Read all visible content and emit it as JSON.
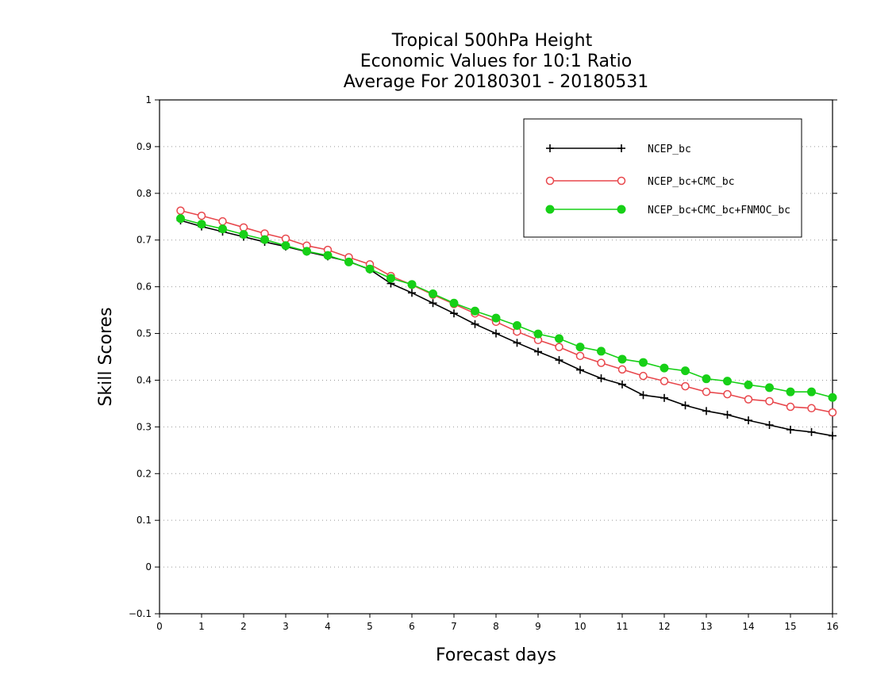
{
  "chart_data": {
    "type": "line",
    "title_lines": [
      "Tropical 500hPa Height",
      "Economic Values for 10:1 Ratio",
      "Average For 20180301 - 20180531"
    ],
    "xlabel": "Forecast days",
    "ylabel": "Skill Scores",
    "xlim": [
      0,
      16
    ],
    "ylim": [
      -0.1,
      1
    ],
    "x_ticks": [
      0,
      1,
      2,
      3,
      4,
      5,
      6,
      7,
      8,
      9,
      10,
      11,
      12,
      13,
      14,
      15,
      16
    ],
    "x_tick_labels": [
      "0",
      "1",
      "2",
      "3",
      "4",
      "5",
      "6",
      "7",
      "8",
      "9",
      "10",
      "11",
      "12",
      "13",
      "14",
      "15",
      "16"
    ],
    "y_ticks": [
      -0.1,
      0,
      0.1,
      0.2,
      0.3,
      0.4,
      0.5,
      0.6,
      0.7,
      0.8,
      0.9,
      1
    ],
    "y_tick_labels": [
      "−0.1",
      "0",
      "0.1",
      "0.2",
      "0.3",
      "0.4",
      "0.5",
      "0.6",
      "0.7",
      "0.8",
      "0.9",
      "1"
    ],
    "grid": "horizontal dotted",
    "legend_position": "top-right",
    "x": [
      0.5,
      1,
      1.5,
      2,
      2.5,
      3,
      3.5,
      4,
      4.5,
      5,
      5.5,
      6,
      6.5,
      7,
      7.5,
      8,
      8.5,
      9,
      9.5,
      10,
      10.5,
      11,
      11.5,
      12,
      12.5,
      13,
      13.5,
      14,
      14.5,
      15,
      15.5,
      16
    ],
    "series": [
      {
        "name": "NCEP_bc",
        "color": "#000000",
        "marker": "plus",
        "values": [
          0.742,
          0.729,
          0.718,
          0.707,
          0.696,
          0.686,
          0.675,
          0.665,
          0.654,
          0.637,
          0.607,
          0.587,
          0.565,
          0.543,
          0.52,
          0.5,
          0.48,
          0.461,
          0.443,
          0.422,
          0.404,
          0.391,
          0.368,
          0.362,
          0.346,
          0.334,
          0.326,
          0.314,
          0.304,
          0.294,
          0.289,
          0.281
        ]
      },
      {
        "name": "NCEP_bc+CMC_bc",
        "color": "#e8474c",
        "marker": "open-circle",
        "values": [
          0.763,
          0.752,
          0.74,
          0.727,
          0.714,
          0.703,
          0.688,
          0.679,
          0.663,
          0.648,
          0.623,
          0.604,
          0.583,
          0.563,
          0.543,
          0.525,
          0.504,
          0.486,
          0.471,
          0.452,
          0.437,
          0.423,
          0.409,
          0.398,
          0.387,
          0.375,
          0.37,
          0.359,
          0.355,
          0.343,
          0.34,
          0.331
        ]
      },
      {
        "name": "NCEP_bc+CMC_bc+FNMOC_bc",
        "color": "#17d017",
        "marker": "filled-circle",
        "values": [
          0.746,
          0.734,
          0.724,
          0.712,
          0.701,
          0.688,
          0.676,
          0.667,
          0.653,
          0.638,
          0.618,
          0.605,
          0.585,
          0.565,
          0.548,
          0.533,
          0.517,
          0.499,
          0.489,
          0.471,
          0.462,
          0.445,
          0.438,
          0.426,
          0.42,
          0.403,
          0.398,
          0.39,
          0.384,
          0.375,
          0.375,
          0.363
        ]
      }
    ]
  }
}
